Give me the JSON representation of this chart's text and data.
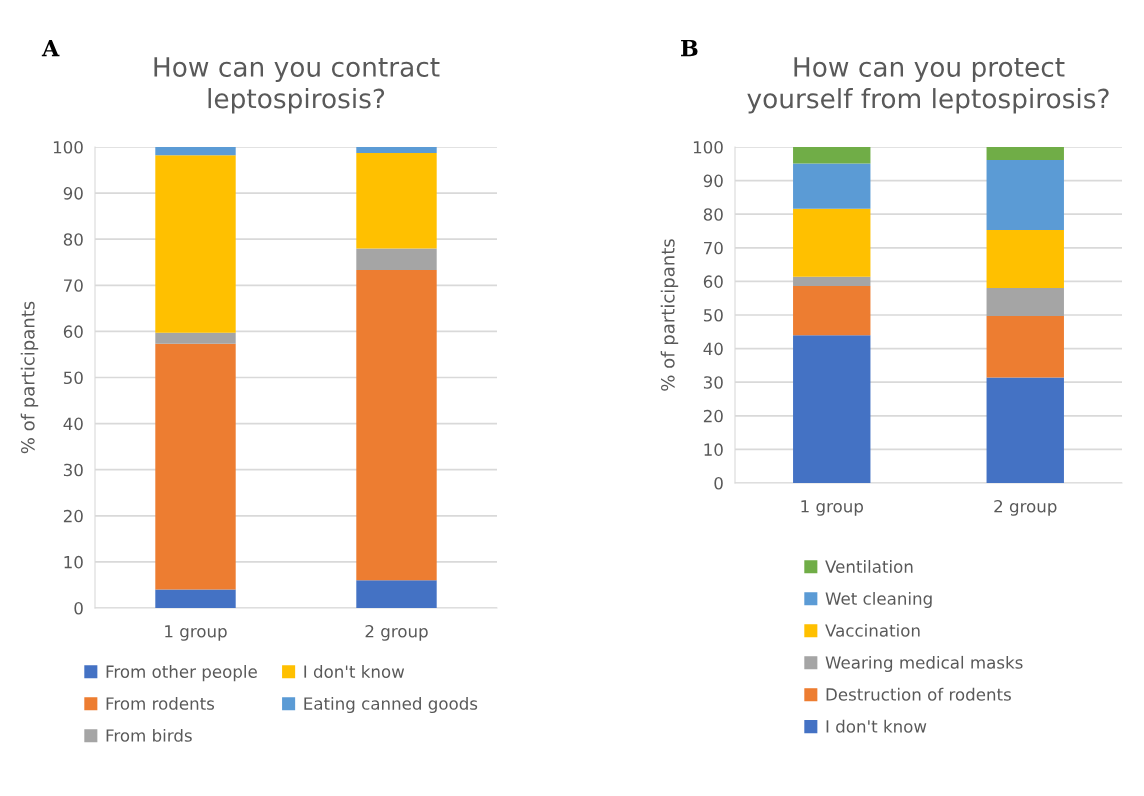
{
  "chart_data": [
    {
      "type": "bar",
      "stacked": true,
      "title": "How can you contract\nleptospirosis?",
      "ylabel": "% of participants",
      "annotations": [
        "A"
      ],
      "categories": [
        "1 group",
        "2 group"
      ],
      "ylim": [
        0,
        100
      ],
      "yticks": [
        0,
        10,
        20,
        30,
        40,
        50,
        60,
        70,
        80,
        90,
        100
      ],
      "grid": "y",
      "legend": "bottom",
      "series": [
        {
          "name": "From other people",
          "color": "#4472c4",
          "values": [
            4,
            6
          ]
        },
        {
          "name": "From rodents",
          "color": "#ed7d31",
          "values": [
            53.3,
            67.3
          ]
        },
        {
          "name": "From birds",
          "color": "#a5a5a5",
          "values": [
            2.4,
            4.7
          ]
        },
        {
          "name": "I don't know",
          "color": "#ffc000",
          "values": [
            38.5,
            20.7
          ]
        },
        {
          "name": "Eating canned goods",
          "color": "#5b9bd5",
          "values": [
            1.8,
            1.3
          ]
        }
      ]
    },
    {
      "type": "bar",
      "stacked": true,
      "title": "How can you protect\nyourself from leptospirosis?",
      "ylabel": "% of participants",
      "annotations": [
        "B"
      ],
      "categories": [
        "1 group",
        "2 group"
      ],
      "ylim": [
        0,
        100
      ],
      "yticks": [
        0,
        10,
        20,
        30,
        40,
        50,
        60,
        70,
        80,
        90,
        100
      ],
      "grid": "y",
      "legend": "bottom",
      "series": [
        {
          "name": "I don't know",
          "color": "#4472c4",
          "values": [
            44,
            31.4
          ]
        },
        {
          "name": "Destruction of rodents",
          "color": "#ed7d31",
          "values": [
            14.6,
            18.3
          ]
        },
        {
          "name": "Wearing medical masks",
          "color": "#a5a5a5",
          "values": [
            2.8,
            8.3
          ]
        },
        {
          "name": "Vaccination",
          "color": "#ffc000",
          "values": [
            20.2,
            17.3
          ]
        },
        {
          "name": "Wet cleaning",
          "color": "#5b9bd5",
          "values": [
            13.5,
            20.8
          ]
        },
        {
          "name": "Ventilation",
          "color": "#70ad47",
          "values": [
            4.9,
            3.9
          ]
        }
      ]
    }
  ]
}
